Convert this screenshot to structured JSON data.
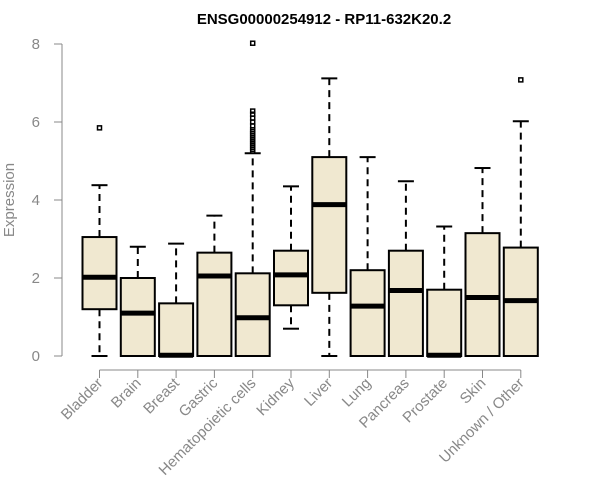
{
  "chart_data": {
    "type": "box",
    "title": "ENSG00000254912 - RP11-632K20.2",
    "xlabel": "",
    "ylabel": "Expression",
    "ylim": [
      0,
      8
    ],
    "yticks": [
      "0",
      "2",
      "4",
      "6",
      "8"
    ],
    "categories": [
      "Bladder",
      "Brain",
      "Breast",
      "Gastric",
      "Hematopoietic cells",
      "Kidney",
      "Liver",
      "Lung",
      "Pancreas",
      "Prostate",
      "Skin",
      "Unknown / Other"
    ],
    "boxes": [
      {
        "min": 0.0,
        "q1": 1.2,
        "median": 2.02,
        "q3": 3.05,
        "max": 4.38,
        "outliers": [
          5.85
        ]
      },
      {
        "min": 0.0,
        "q1": 0.0,
        "median": 1.1,
        "q3": 2.0,
        "max": 2.8,
        "outliers": []
      },
      {
        "min": 0.0,
        "q1": 0.0,
        "median": 0.02,
        "q3": 1.35,
        "max": 2.88,
        "outliers": []
      },
      {
        "min": 0.0,
        "q1": 0.0,
        "median": 2.05,
        "q3": 2.65,
        "max": 3.6,
        "outliers": []
      },
      {
        "min": 0.0,
        "q1": 0.0,
        "median": 0.98,
        "q3": 2.12,
        "max": 5.2,
        "outliers": [
          5.25,
          5.3,
          5.35,
          5.4,
          5.45,
          5.5,
          5.55,
          5.6,
          5.65,
          5.7,
          5.75,
          5.8,
          5.9,
          6.0,
          6.1,
          6.2,
          6.28,
          8.02
        ]
      },
      {
        "min": 0.7,
        "q1": 1.3,
        "median": 2.08,
        "q3": 2.7,
        "max": 4.35,
        "outliers": []
      },
      {
        "min": 0.0,
        "q1": 1.62,
        "median": 3.88,
        "q3": 5.1,
        "max": 7.12,
        "outliers": []
      },
      {
        "min": 0.0,
        "q1": 0.0,
        "median": 1.28,
        "q3": 2.2,
        "max": 5.1,
        "outliers": []
      },
      {
        "min": 0.0,
        "q1": 0.0,
        "median": 1.68,
        "q3": 2.7,
        "max": 4.48,
        "outliers": []
      },
      {
        "min": 0.0,
        "q1": 0.0,
        "median": 0.02,
        "q3": 1.7,
        "max": 3.32,
        "outliers": []
      },
      {
        "min": 0.0,
        "q1": 0.0,
        "median": 1.5,
        "q3": 3.15,
        "max": 4.82,
        "outliers": []
      },
      {
        "min": 0.0,
        "q1": 0.0,
        "median": 1.42,
        "q3": 2.78,
        "max": 6.02,
        "outliers": [
          7.08
        ]
      }
    ]
  }
}
